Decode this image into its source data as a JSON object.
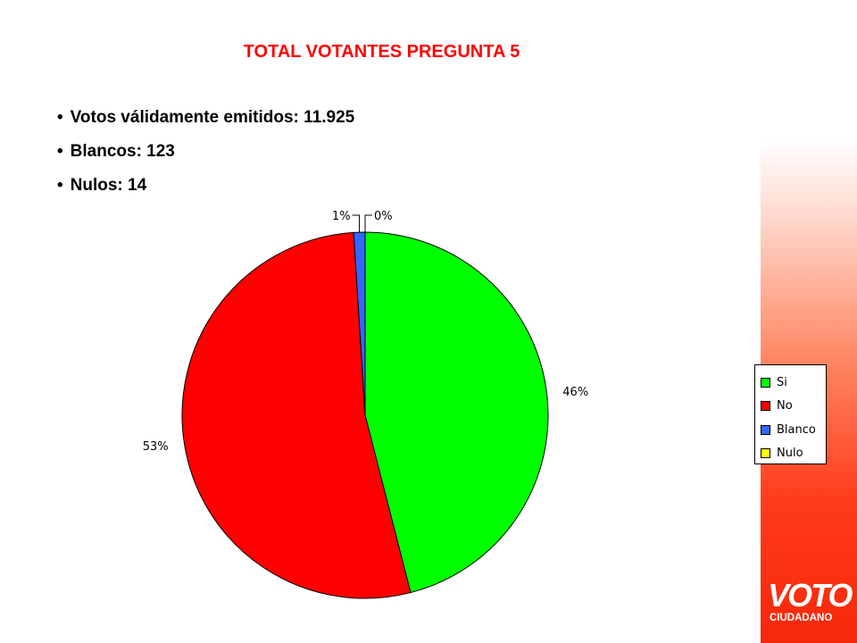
{
  "slide": {
    "title": "TOTAL VOTANTES PREGUNTA 5",
    "bullets": [
      "Votos válidamente emitidos: 11.925",
      "Blancos: 123",
      "Nulos: 14"
    ],
    "logo": {
      "main": "VOTO",
      "sub": "CIUDADANO"
    }
  },
  "chart_data": {
    "type": "pie",
    "title": "",
    "categories": [
      "Si",
      "No",
      "Blanco",
      "Nulo"
    ],
    "values": [
      46,
      53,
      1,
      0
    ],
    "data_labels": [
      "46%",
      "53%",
      "1%",
      "0%"
    ],
    "colors": [
      "#00ff00",
      "#ff0000",
      "#3366ff",
      "#ffff00"
    ],
    "legend_position": "right"
  }
}
